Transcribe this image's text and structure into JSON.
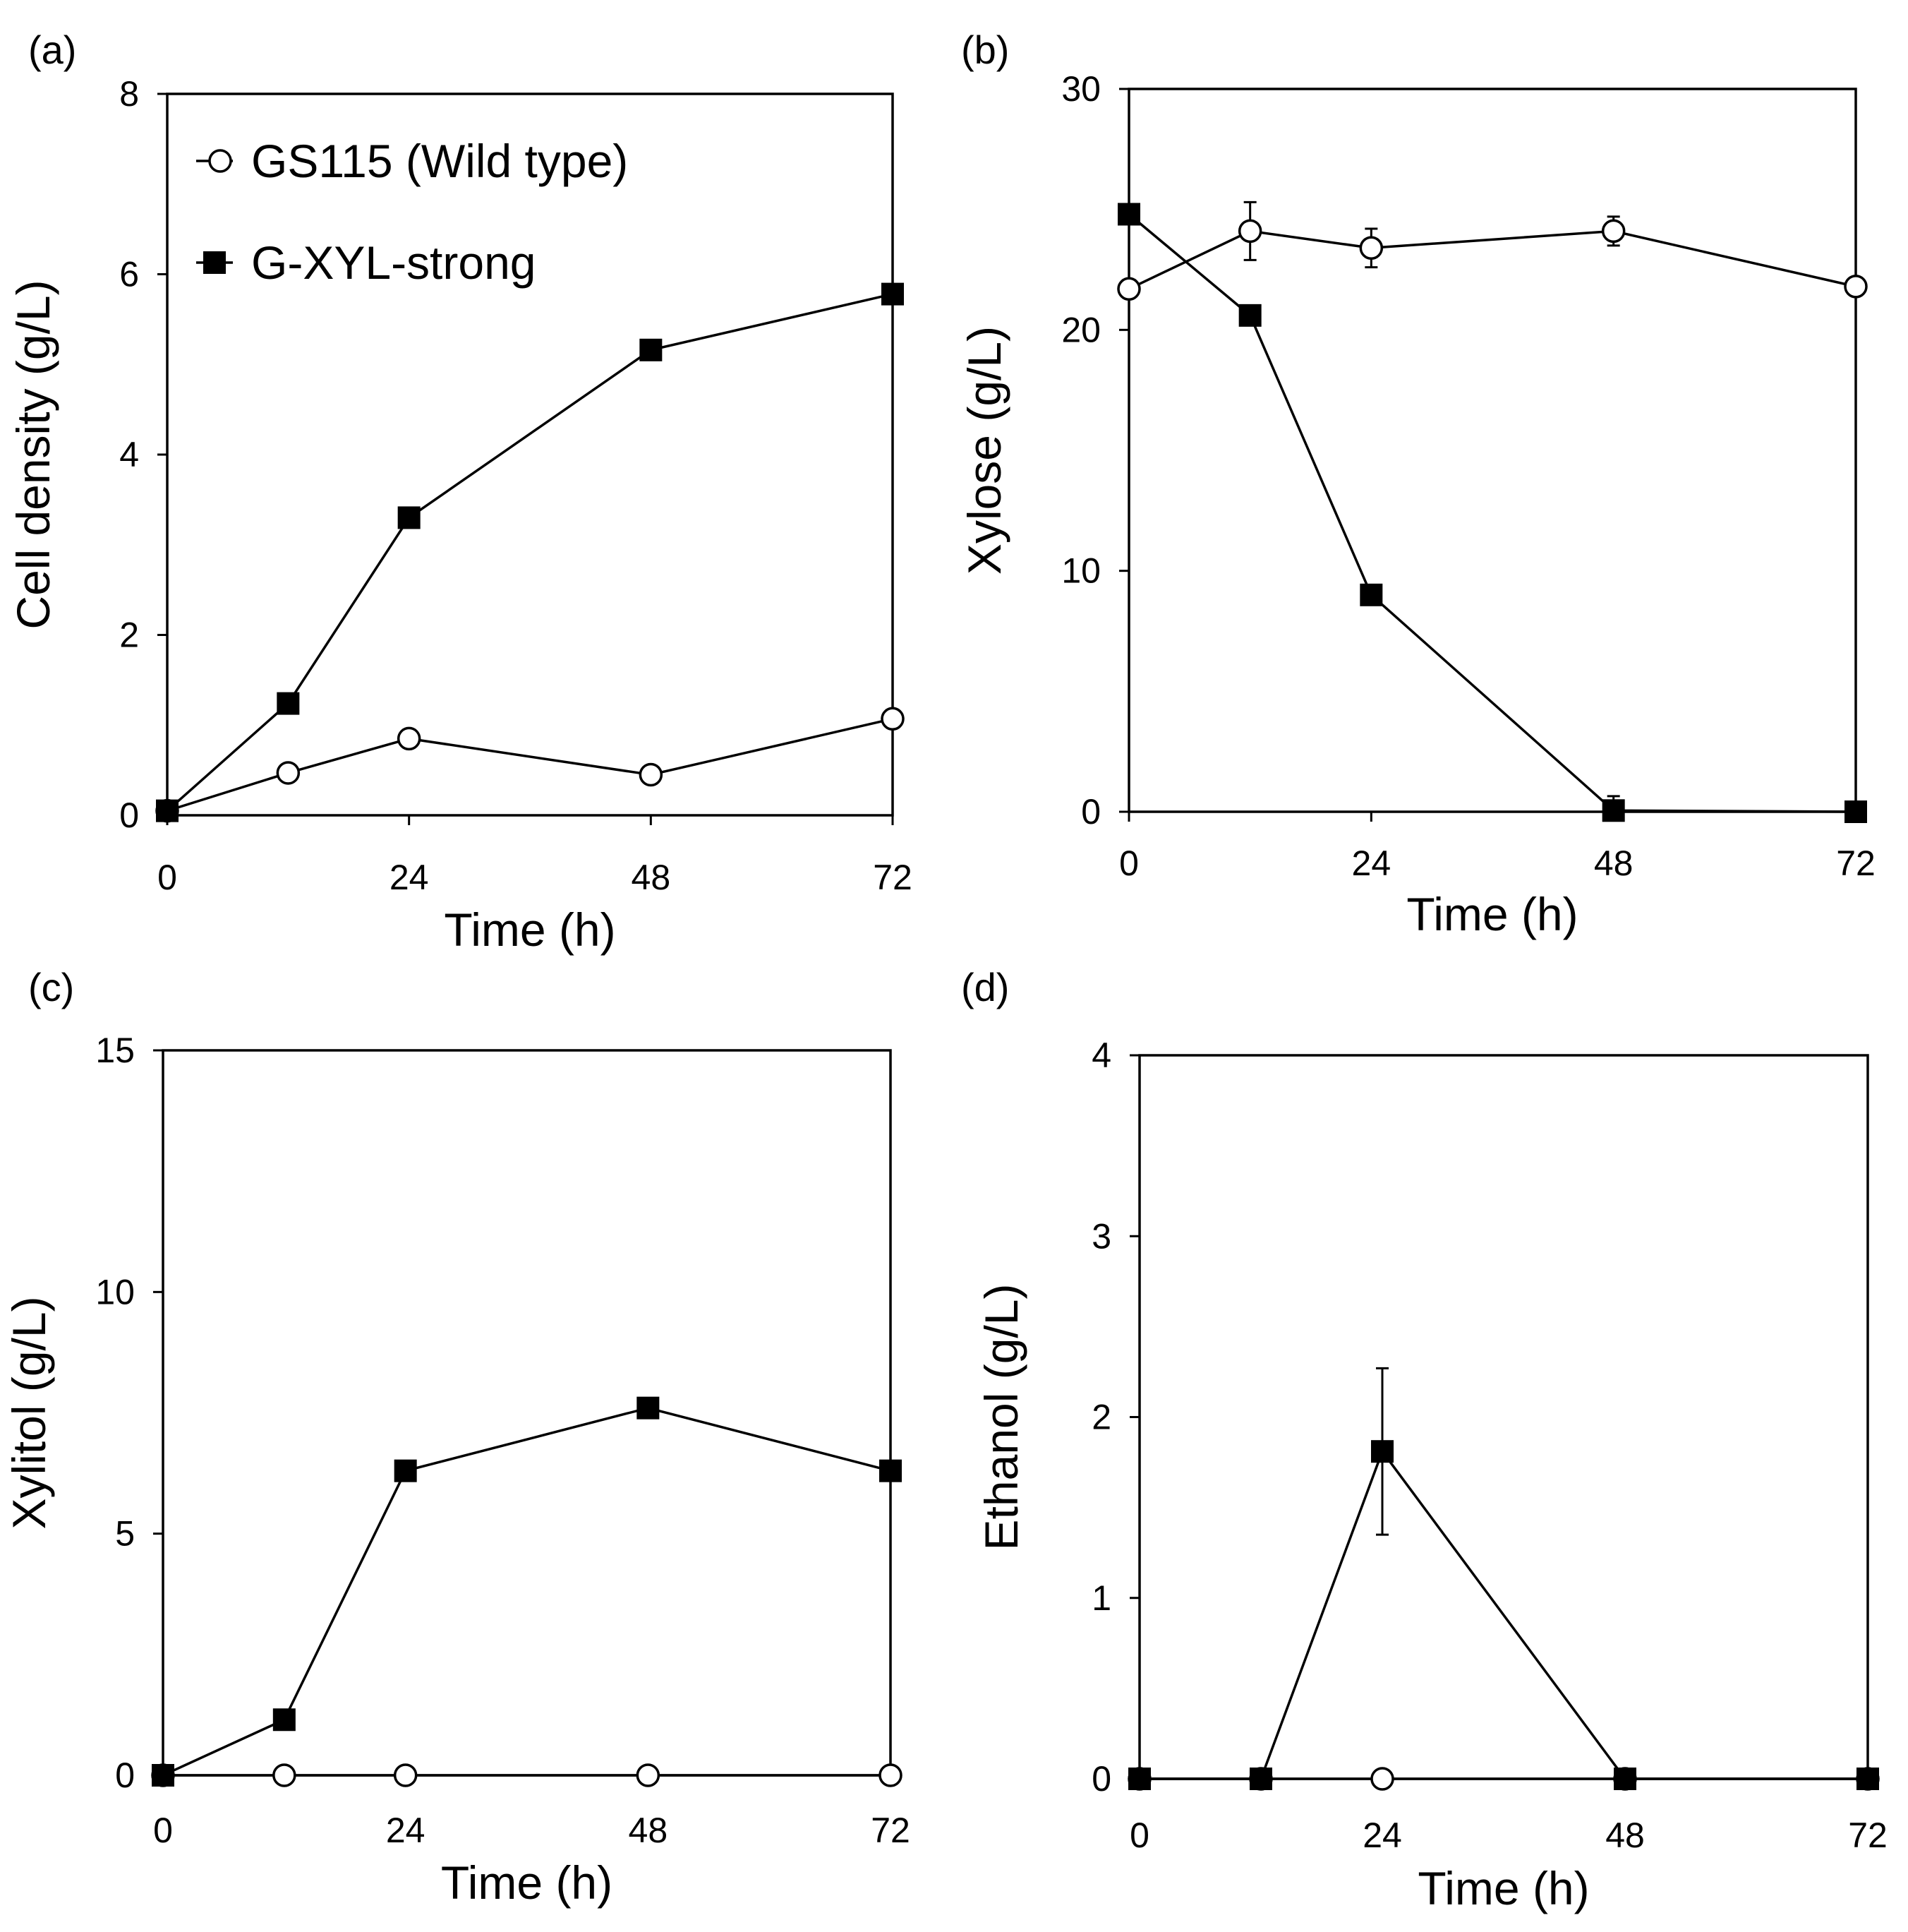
{
  "figure": {
    "legend": {
      "series": [
        {
          "name": "GS115 (Wild type)",
          "marker": "open-circle"
        },
        {
          "name": "G-XYL-strong",
          "marker": "filled-square"
        }
      ]
    }
  },
  "chart_data": [
    {
      "panel": "(a)",
      "type": "line",
      "xlabel": "Time (h)",
      "ylabel": "Cell density (g/L)",
      "xlim": [
        0,
        72
      ],
      "ylim": [
        0,
        8
      ],
      "xticks": [
        0,
        24,
        48,
        72
      ],
      "yticks": [
        0,
        2,
        4,
        6,
        8
      ],
      "legend_position": "top-left",
      "series": [
        {
          "name": "GS115 (Wild type)",
          "marker": "open-circle",
          "x": [
            0,
            12,
            24,
            48,
            72
          ],
          "y": [
            0.05,
            0.47,
            0.85,
            0.45,
            1.07
          ],
          "err": [
            0,
            0,
            0,
            0,
            0
          ]
        },
        {
          "name": "G-XYL-strong",
          "marker": "filled-square",
          "x": [
            0,
            12,
            24,
            48,
            72
          ],
          "y": [
            0.05,
            1.24,
            3.3,
            5.16,
            5.78
          ],
          "err": [
            0,
            0,
            0,
            0,
            0
          ]
        }
      ]
    },
    {
      "panel": "(b)",
      "type": "line",
      "xlabel": "Time (h)",
      "ylabel": "Xylose (g/L)",
      "xlim": [
        0,
        72
      ],
      "ylim": [
        0,
        30
      ],
      "xticks": [
        0,
        24,
        48,
        72
      ],
      "yticks": [
        0,
        10,
        20,
        30
      ],
      "series": [
        {
          "name": "GS115 (Wild type)",
          "marker": "open-circle",
          "x": [
            0,
            12,
            24,
            48,
            72
          ],
          "y": [
            21.7,
            24.1,
            23.4,
            24.1,
            21.8
          ],
          "err": [
            0,
            1.2,
            0.8,
            0.6,
            0
          ]
        },
        {
          "name": "G-XYL-strong",
          "marker": "filled-square",
          "x": [
            0,
            12,
            24,
            48,
            72
          ],
          "y": [
            24.8,
            20.6,
            9.0,
            0.05,
            0.0
          ],
          "err": [
            0,
            0.3,
            0,
            0.6,
            0
          ]
        }
      ]
    },
    {
      "panel": "(c)",
      "type": "line",
      "xlabel": "Time (h)",
      "ylabel": "Xylitol (g/L)",
      "xlim": [
        0,
        72
      ],
      "ylim": [
        0,
        15
      ],
      "xticks": [
        0,
        24,
        48,
        72
      ],
      "yticks": [
        0,
        5,
        10,
        15
      ],
      "series": [
        {
          "name": "GS115 (Wild type)",
          "marker": "open-circle",
          "x": [
            0,
            12,
            24,
            48,
            72
          ],
          "y": [
            0,
            0,
            0,
            0,
            0
          ],
          "err": [
            0,
            0,
            0,
            0,
            0
          ]
        },
        {
          "name": "G-XYL-strong",
          "marker": "filled-square",
          "x": [
            0,
            12,
            24,
            48,
            72
          ],
          "y": [
            0,
            1.15,
            6.3,
            7.6,
            6.3
          ],
          "err": [
            0,
            0,
            0,
            0,
            0
          ]
        }
      ]
    },
    {
      "panel": "(d)",
      "type": "line",
      "xlabel": "Time (h)",
      "ylabel": "Ethanol (g/L)",
      "xlim": [
        0,
        72
      ],
      "ylim": [
        0,
        4
      ],
      "xticks": [
        0,
        24,
        48,
        72
      ],
      "yticks": [
        0,
        1,
        2,
        3,
        4
      ],
      "series": [
        {
          "name": "GS115 (Wild type)",
          "marker": "open-circle",
          "x": [
            0,
            12,
            24,
            48,
            72
          ],
          "y": [
            0,
            0,
            0,
            0,
            0
          ],
          "err": [
            0,
            0,
            0,
            0,
            0
          ]
        },
        {
          "name": "G-XYL-strong",
          "marker": "filled-square",
          "x": [
            0,
            12,
            24,
            48,
            72
          ],
          "y": [
            0,
            0,
            1.81,
            0,
            0
          ],
          "err": [
            0,
            0,
            0.46,
            0,
            0
          ]
        }
      ]
    }
  ]
}
